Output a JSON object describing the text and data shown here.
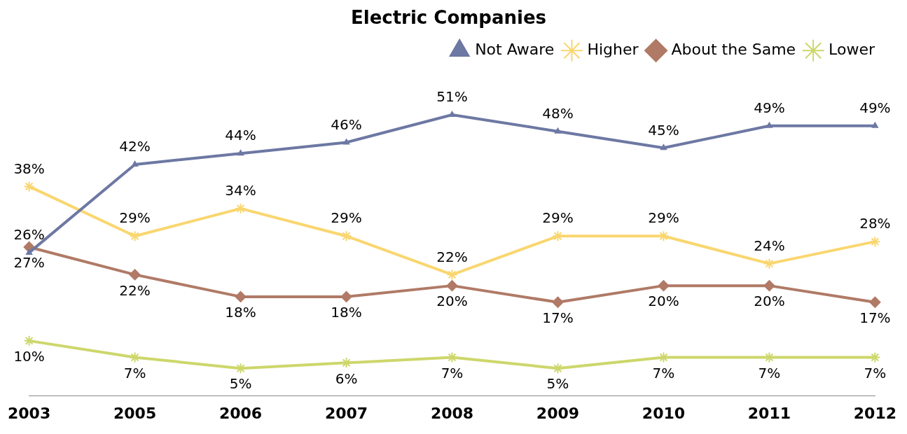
{
  "chart_data": {
    "type": "line",
    "title": "Electric Companies",
    "categories": [
      "2003",
      "2005",
      "2006",
      "2007",
      "2008",
      "2009",
      "2010",
      "2011",
      "2012"
    ],
    "series": [
      {
        "name": "Not Aware",
        "color": "#6d78a3",
        "marker": "triangle",
        "values": [
          26,
          42,
          44,
          46,
          51,
          48,
          45,
          49,
          49
        ],
        "value_labels": [
          "26%",
          "42%",
          "44%",
          "46%",
          "51%",
          "48%",
          "45%",
          "49%",
          "49%"
        ]
      },
      {
        "name": "Higher",
        "color": "#f9d66f",
        "marker": "cross",
        "values": [
          38,
          29,
          34,
          29,
          22,
          29,
          29,
          24,
          28
        ],
        "value_labels": [
          "38%",
          "29%",
          "34%",
          "29%",
          "22%",
          "29%",
          "29%",
          "24%",
          "28%"
        ]
      },
      {
        "name": "About the Same",
        "color": "#b07a66",
        "marker": "diamond",
        "values": [
          27,
          22,
          18,
          18,
          20,
          17,
          20,
          20,
          17
        ],
        "value_labels": [
          "27%",
          "22%",
          "18%",
          "18%",
          "20%",
          "17%",
          "20%",
          "20%",
          "17%"
        ]
      },
      {
        "name": "Lower",
        "color": "#cdd76b",
        "marker": "cross",
        "values": [
          10,
          7,
          5,
          6,
          7,
          5,
          7,
          7,
          7
        ],
        "value_labels": [
          "10%",
          "7%",
          "5%",
          "6%",
          "7%",
          "5%",
          "7%",
          "7%",
          "7%"
        ]
      }
    ],
    "legend": "top right",
    "grid": false
  }
}
